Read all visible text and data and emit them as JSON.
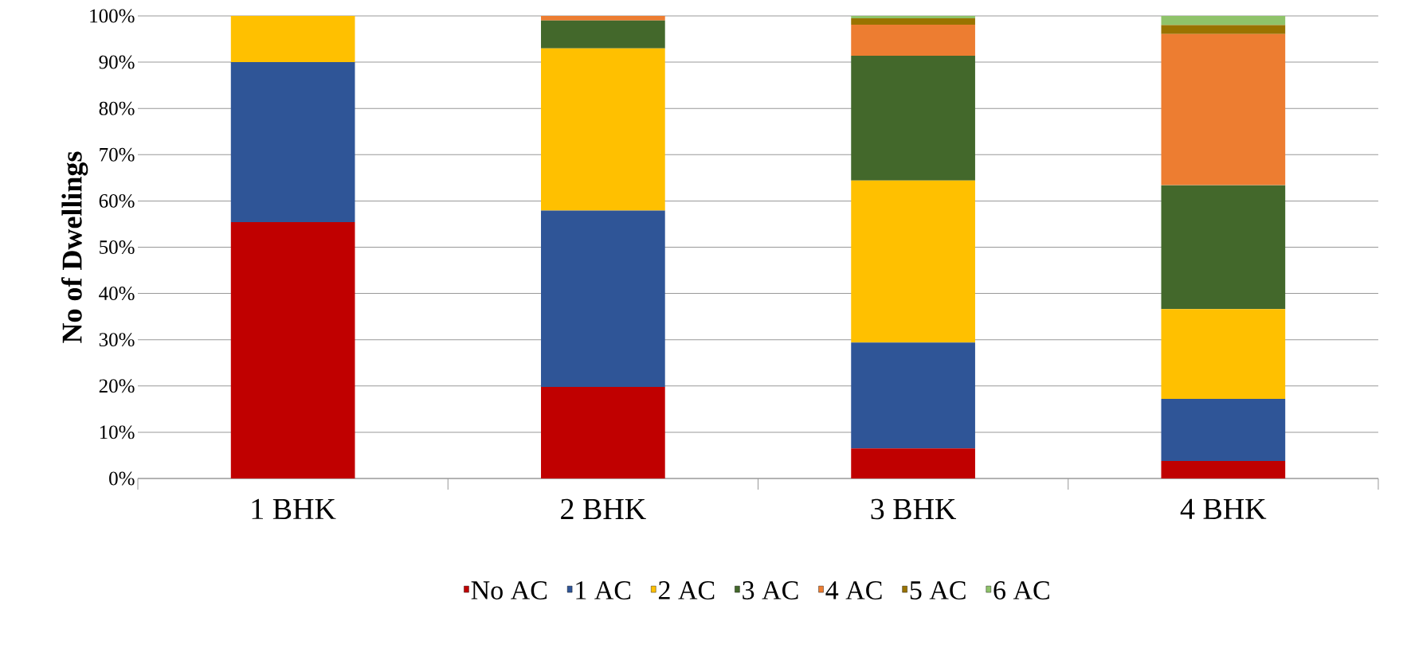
{
  "chart_data": {
    "type": "bar",
    "stacked": true,
    "ylabel": "No of Dwellings",
    "categories": [
      "1 BHK",
      "2 BHK",
      "3 BHK",
      "4 BHK"
    ],
    "series": [
      {
        "name": "No AC",
        "color": "#c00000",
        "values": [
          55.4,
          19.8,
          6.5,
          3.8
        ]
      },
      {
        "name": "1 AC",
        "color": "#2f5597",
        "values": [
          34.6,
          38.1,
          22.9,
          13.4
        ]
      },
      {
        "name": "2 AC",
        "color": "#ffc000",
        "values": [
          10.0,
          35.1,
          35.0,
          19.4
        ]
      },
      {
        "name": "3 AC",
        "color": "#43682b",
        "values": [
          0,
          6.0,
          27.0,
          26.8
        ]
      },
      {
        "name": "4 AC",
        "color": "#ed7d31",
        "values": [
          0,
          1.0,
          6.7,
          32.7
        ]
      },
      {
        "name": "5 AC",
        "color": "#997300",
        "values": [
          0,
          0,
          1.4,
          1.9
        ]
      },
      {
        "name": "6 AC",
        "color": "#8fc36a",
        "values": [
          0,
          0,
          0.5,
          2.0
        ]
      }
    ],
    "ylim": [
      0,
      100
    ],
    "yticks": [
      {
        "value": 0,
        "label": "0%"
      },
      {
        "value": 10,
        "label": "10%"
      },
      {
        "value": 20,
        "label": "20%"
      },
      {
        "value": 30,
        "label": "30%"
      },
      {
        "value": 40,
        "label": "40%"
      },
      {
        "value": 50,
        "label": "50%"
      },
      {
        "value": 60,
        "label": "60%"
      },
      {
        "value": 70,
        "label": "70%"
      },
      {
        "value": 80,
        "label": "80%"
      },
      {
        "value": 90,
        "label": "90%"
      },
      {
        "value": 100,
        "label": "100%"
      }
    ],
    "grid": "y",
    "legend": "bottom"
  }
}
